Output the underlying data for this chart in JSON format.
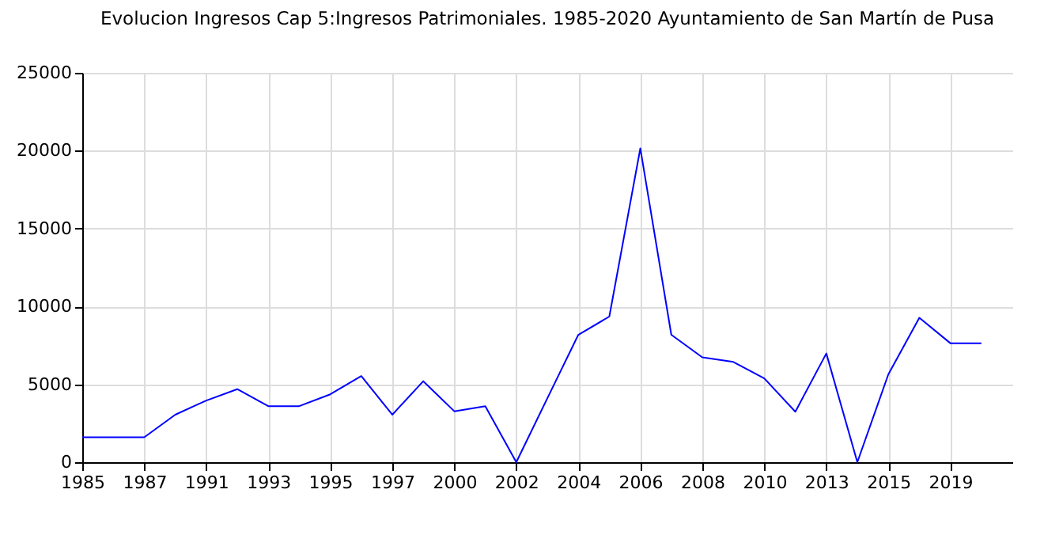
{
  "chart_data": {
    "type": "line",
    "title": "Evolucion Ingresos Cap 5:Ingresos Patrimoniales. 1985-2020 Ayuntamiento de San Martín de Pusa",
    "categories": [
      "1985",
      null,
      "1987",
      null,
      "1991",
      null,
      "1993",
      null,
      "1995",
      null,
      "1997",
      null,
      "2000",
      null,
      "2002",
      null,
      "2004",
      null,
      "2006",
      null,
      "2008",
      null,
      "2010",
      null,
      "2013",
      null,
      "2015",
      null,
      "2019",
      null
    ],
    "series": [
      {
        "color": "#0000ff",
        "values": [
          1600,
          1600,
          1600,
          3050,
          3960,
          4690,
          3600,
          3600,
          4360,
          5530,
          3050,
          5200,
          3270,
          3600,
          0,
          4100,
          8180,
          9350,
          20150,
          8180,
          6730,
          6440,
          5380,
          3240,
          6980,
          0,
          5640,
          9270,
          7640,
          7640
        ]
      }
    ],
    "ylim": [
      0,
      25000
    ],
    "yticks": [
      0,
      5000,
      10000,
      15000,
      20000,
      25000
    ],
    "grid": true,
    "legend": false,
    "marker": "none",
    "line_style": "solid"
  }
}
